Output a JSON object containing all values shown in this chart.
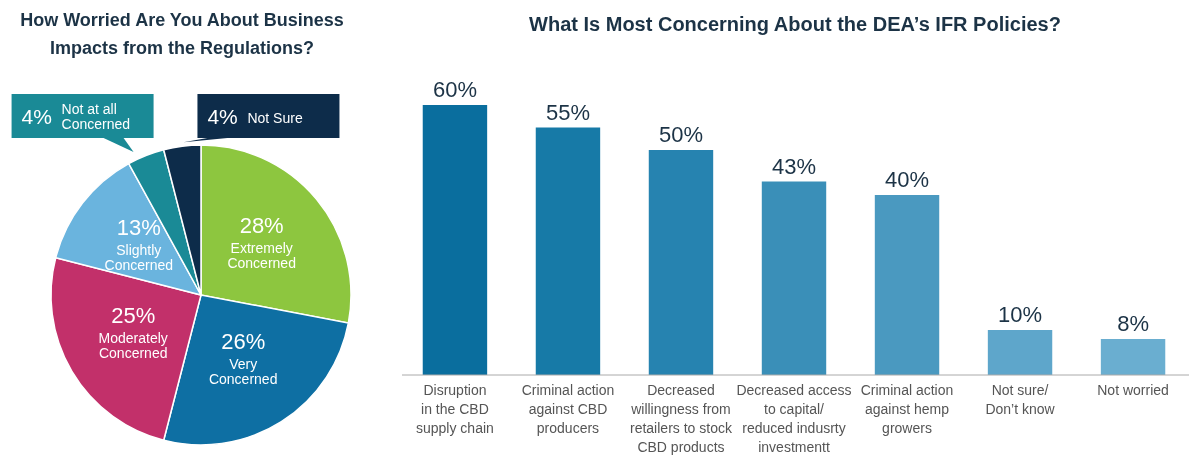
{
  "chart_data": [
    {
      "type": "pie",
      "title": "How Worried Are You About Business\nImpacts from the Regulations?",
      "categories": [
        "Extremely\nConcerned",
        "Very\nConcerned",
        "Moderately\nConcerned",
        "Slightly\nConcerned",
        "Not at all\nConcerned",
        "Not Sure"
      ],
      "values": [
        28,
        26,
        25,
        13,
        4,
        4
      ],
      "colors": [
        "#8dc63f",
        "#0e6fa3",
        "#c2306a",
        "#6ab4de",
        "#1a8a96",
        "#0d2c4a"
      ],
      "value_labels": [
        "28%",
        "26%",
        "25%",
        "13%",
        "4%",
        "4%"
      ]
    },
    {
      "type": "bar",
      "title": "What Is Most Concerning About the DEA’s IFR Policies?",
      "categories": [
        "Disruption\nin the CBD\nsupply chain",
        "Criminal action\nagainst CBD\nproducers",
        "Decreased\nwillingness from\nretailers to stock\nCBD products",
        "Decreased access\nto capital/\nreduced indusrty\ninvestmentt",
        "Criminal action\nagainst hemp\ngrowers",
        "Not sure/\nDon’t know",
        "Not worried"
      ],
      "values": [
        60,
        55,
        50,
        43,
        40,
        10,
        8
      ],
      "colors": [
        "#0a6e9e",
        "#177aa7",
        "#2683b0",
        "#3a8fb8",
        "#4a99c0",
        "#5ea6cb",
        "#6aaed0"
      ],
      "value_labels": [
        "60%",
        "55%",
        "50%",
        "43%",
        "40%",
        "10%",
        "8%"
      ],
      "tick_labels": "x"
    }
  ]
}
